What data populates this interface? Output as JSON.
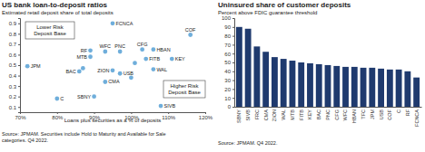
{
  "chart_data": [
    {
      "type": "scatter",
      "title": "US bank loan-to-deposit ratios",
      "subtitle": "Estimated retail deposit share of total deposits",
      "x_label": "Loans plus securities as a % of deposits",
      "annotations": [
        [
          "Lower Risk",
          "Deposit Base"
        ],
        [
          "Higher Risk",
          "Deposit Base"
        ]
      ],
      "source": [
        "Source: JPMAM. Securities include Hold to Maturity and Available for Sale",
        "categories. Q4 2022."
      ],
      "labels": [
        "JPM",
        "FCNCA",
        "COF",
        "RF",
        "WFC",
        "MTB",
        "PNC",
        "CFG",
        "HBAN",
        "KEY",
        "FITB",
        "BAC",
        "ZION",
        "USB",
        "WAL",
        "CMA",
        "C",
        "SBNY",
        "SIVB",
        null,
        null,
        null
      ],
      "x": [
        72,
        95,
        116,
        89,
        93,
        89,
        97,
        103,
        106,
        111,
        104,
        86,
        95,
        97,
        106,
        93,
        80,
        90,
        108,
        87,
        100,
        101
      ],
      "values": [
        0.49,
        0.9,
        0.79,
        0.64,
        0.63,
        0.58,
        0.63,
        0.65,
        0.65,
        0.56,
        0.56,
        0.44,
        0.45,
        0.42,
        0.46,
        0.34,
        0.18,
        0.2,
        0.11,
        0.47,
        0.38,
        0.52
      ],
      "color": "#6faedb",
      "marker": "circle",
      "xlim": [
        70,
        120
      ],
      "xticks": [
        {
          "value": 70,
          "label": "70%"
        },
        {
          "value": 80,
          "label": "80%"
        },
        {
          "value": 90,
          "label": "90%"
        },
        {
          "value": 100,
          "label": "100%"
        },
        {
          "value": 110,
          "label": "110%"
        },
        {
          "value": 120,
          "label": "120%"
        }
      ],
      "ylim": [
        0.05,
        0.95
      ],
      "yticks": [
        0.1,
        0.2,
        0.3,
        0.4,
        0.5,
        0.6,
        0.7,
        0.8,
        0.9
      ],
      "grid": false
    },
    {
      "type": "bar",
      "title": "Uninsured share of customer deposits",
      "subtitle": "Percent above FDIC guarantee threshold",
      "source": [
        "Source: JPMAM. Q4 2022."
      ],
      "categories": [
        "SBNY",
        "SIVB",
        "FRC",
        "CMA",
        "ZION",
        "WAL",
        "MTB",
        "FITB",
        "KEY",
        "BAC",
        "PNC",
        "CFG",
        "WFC",
        "HBAN",
        "TFC",
        "JPM",
        "USB",
        "COF",
        "C",
        "RF",
        "FCNCA"
      ],
      "values": [
        90,
        88,
        68,
        62,
        56,
        54,
        52,
        50,
        49,
        48,
        47,
        46,
        45,
        45,
        44,
        44,
        43,
        42,
        42,
        40,
        33
      ],
      "color": "#1f3a6e",
      "ylim": [
        0,
        100
      ],
      "yticks": [
        0,
        10,
        20,
        30,
        40,
        50,
        60,
        70,
        80,
        90,
        100
      ],
      "grid": false
    }
  ]
}
